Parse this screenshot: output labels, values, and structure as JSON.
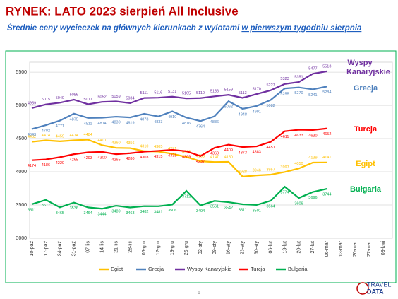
{
  "chart_data": {
    "type": "line",
    "title": "RYNEK: LATO 2023 sierpień All Inclusive",
    "subtitle": [
      "Średnie ceny wycieczek na głównych kierunkach z wylotami ",
      "w pierwszym tygodniu sierpnia"
    ],
    "categories": [
      "10-paź",
      "17-paź",
      "24-paź",
      "31-paź",
      "07-lis",
      "14-lis",
      "21-lis",
      "28-lis",
      "05-gru",
      "12-gru",
      "19-gru",
      "26-gru",
      "02-sty",
      "09-sty",
      "16-sty",
      "23-sty",
      "30-sty",
      "06-lut",
      "13-lut",
      "20-lut",
      "27-lut",
      "06-mar",
      "13-mar",
      "20-mar",
      "27-mar",
      "03-kwi"
    ],
    "series": [
      {
        "name": "Egipt",
        "color": "#ffc000",
        "values": [
          4452,
          4474,
          4459,
          4474,
          4484,
          4401,
          4360,
          4356,
          4310,
          4305,
          4271,
          4223,
          4159,
          4147,
          4150,
          3928,
          3946,
          3957,
          3997,
          4050,
          4139,
          4141,
          null,
          null,
          null,
          null
        ]
      },
      {
        "name": "Grecja",
        "color": "#4f81bd",
        "values": [
          4643,
          4702,
          4771,
          4875,
          4811,
          4814,
          4830,
          4819,
          4873,
          4833,
          4910,
          4816,
          4764,
          4836,
          5062,
          4948,
          4991,
          5082,
          5255,
          5270,
          5241,
          5284,
          null,
          null,
          null,
          null
        ]
      },
      {
        "name": "Wyspy Kanaryjskie",
        "color": "#7030a0",
        "values": [
          4959,
          5015,
          5040,
          5086,
          5017,
          5052,
          5059,
          5034,
          5111,
          5116,
          5131,
          5105,
          5110,
          5136,
          5159,
          5113,
          5170,
          5227,
          5323,
          5351,
          5477,
          5513,
          null,
          null,
          null,
          null
        ]
      },
      {
        "name": "Turcja",
        "color": "#ff0000",
        "values": [
          4174,
          4186,
          4220,
          4265,
          4293,
          4300,
          4265,
          4280,
          4303,
          4315,
          4331,
          4309,
          4237,
          4360,
          4409,
          4373,
          4383,
          4451,
          4611,
          4633,
          4630,
          4652,
          null,
          null,
          null,
          null
        ]
      },
      {
        "name": "Bułgaria",
        "color": "#00b050",
        "values": [
          3511,
          3577,
          3465,
          3536,
          3464,
          3444,
          3489,
          3463,
          3482,
          3481,
          3506,
          3712,
          3494,
          3561,
          3542,
          3511,
          3501,
          3564,
          3774,
          3606,
          3696,
          3744,
          null,
          null,
          null,
          null
        ]
      }
    ],
    "ylim": [
      3000,
      5650
    ],
    "yticks": [
      3000,
      3500,
      4000,
      4500,
      5000,
      5500
    ],
    "grid": true,
    "page_number": "6",
    "logo": [
      "TRAVEL",
      "DATA"
    ]
  }
}
